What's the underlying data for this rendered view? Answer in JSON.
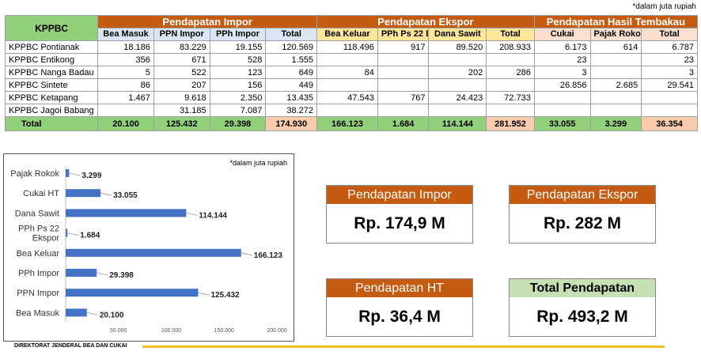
{
  "note_top": "*dalam juta rupiah",
  "table": {
    "corner": "KPPBC",
    "groups": {
      "impor": "Pendapatan Impor",
      "ekspor": "Pendapatan Ekspor",
      "ht": "Pendapatan Hasil Tembakau"
    },
    "columns": [
      "Bea Masuk",
      "PPN Impor",
      "PPh Impor",
      "Total",
      "Bea Keluar",
      "PPh Ps 22 Ekspor",
      "Dana Sawit",
      "Total",
      "Cukai",
      "Pajak Rokok",
      "Total"
    ],
    "rows": [
      {
        "name": "KPPBC Pontianak",
        "cells": [
          "18.186",
          "83.229",
          "19.155",
          "120.569",
          "118.496",
          "917",
          "89.520",
          "208.933",
          "6.173",
          "614",
          "6.787"
        ]
      },
      {
        "name": "KPPBC Entikong",
        "cells": [
          "356",
          "671",
          "528",
          "1.555",
          "",
          "",
          "",
          "",
          "23",
          "",
          "23"
        ]
      },
      {
        "name": "KPPBC Nanga Badau",
        "cells": [
          "5",
          "522",
          "123",
          "649",
          "84",
          "",
          "202",
          "286",
          "3",
          "",
          "3"
        ]
      },
      {
        "name": "KPPBC Sintete",
        "cells": [
          "86",
          "207",
          "156",
          "449",
          "",
          "",
          "",
          "",
          "26.856",
          "2.685",
          "29.541"
        ]
      },
      {
        "name": "KPPBC Ketapang",
        "cells": [
          "1.467",
          "9.618",
          "2.350",
          "13.435",
          "47.543",
          "767",
          "24.423",
          "72.733",
          "",
          "",
          ""
        ]
      },
      {
        "name": "KPPBC Jagoi Babang",
        "cells": [
          "",
          "31.185",
          "7.087",
          "38.272",
          "",
          "",
          "",
          "",
          "",
          "",
          ""
        ]
      }
    ],
    "total": {
      "label": "Total",
      "cells": [
        "20.100",
        "125.432",
        "29.398",
        "174.930",
        "166.123",
        "1.684",
        "114.144",
        "281.952",
        "33.055",
        "3.299",
        "36.354"
      ]
    }
  },
  "kpis": {
    "impor": {
      "title": "Pendapatan Impor",
      "value": "Rp. 174,9 M"
    },
    "ekspor": {
      "title": "Pendapatan Ekspor",
      "value": "Rp. 282 M"
    },
    "ht": {
      "title": "Pendapatan HT",
      "value": "Rp. 36,4 M"
    },
    "total": {
      "title": "Total Pendapatan",
      "value": "Rp. 493,2 M"
    }
  },
  "footer": "DIREKTORAT JENDERAL  BEA DAN CUKAI",
  "colors": {
    "bar": "#4472c4",
    "accent": "#c55a11",
    "green": "#92d07a",
    "footer_line": "#f0c020"
  },
  "chart_data": {
    "type": "bar",
    "orientation": "horizontal",
    "note": "*dalam juta rupiah",
    "categories": [
      "Pajak Rokok",
      "Cukai HT",
      "Dana Sawit",
      "PPh Ps 22 Ekspor",
      "Bea Keluar",
      "PPh Impor",
      "PPN Impor",
      "Bea Masuk"
    ],
    "values": [
      3299,
      33055,
      114144,
      1684,
      166123,
      29398,
      125432,
      20100
    ],
    "value_labels": [
      "3.299",
      "33.055",
      "114.144",
      "1.684",
      "166.123",
      "29.398",
      "125.432",
      "20.100"
    ],
    "xlim": [
      0,
      200000
    ],
    "xticks": [
      50000,
      100000,
      150000,
      200000
    ],
    "xtick_labels": [
      "50.000",
      "100.000",
      "150.000",
      "200.000"
    ],
    "grid": false
  }
}
